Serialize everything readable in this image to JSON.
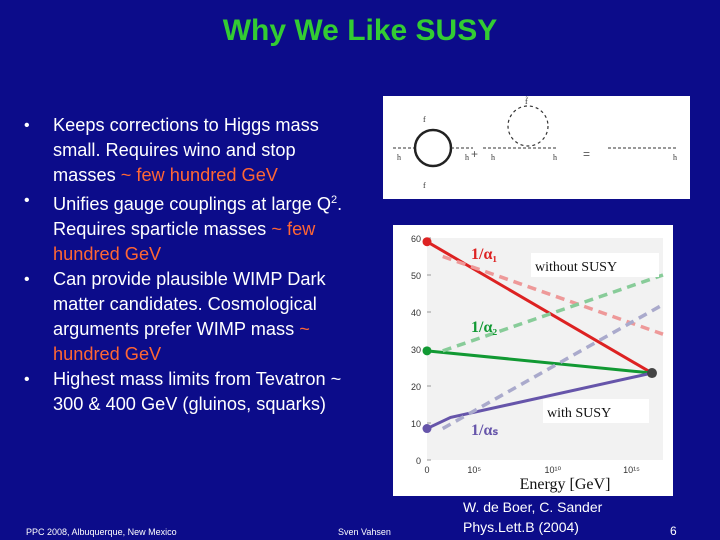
{
  "slide": {
    "title": "Why We Like SUSY",
    "bullets": [
      {
        "before": "Keeps corrections to Higgs mass small. Requires wino and stop masses ",
        "highlight": "~ few hundred GeV",
        "after": ""
      },
      {
        "before": "Unifies gauge couplings at large Q",
        "sup": "2",
        "after_sup": ". Requires sparticle masses ",
        "highlight": "~ few hundred GeV",
        "after": ""
      },
      {
        "before": "Can provide plausible WIMP Dark matter candidates. Cosmological arguments prefer WIMP mass ",
        "highlight": "~ hundred GeV",
        "after": ""
      },
      {
        "before": "Highest mass limits from Tevatron ~ 300 & 400 GeV (gluinos, squarks)",
        "highlight": "",
        "after": ""
      }
    ],
    "colors": {
      "background": "#0c0c8a",
      "title": "#33cc33",
      "highlight": "#ff6633"
    }
  },
  "loop_diagram": {
    "labels": {
      "f_top": "f",
      "f_bottom": "f",
      "h1": "h",
      "h2": "h",
      "h3": "h",
      "h4": "h",
      "h5": "h",
      "stop": "f̃",
      "plus": "+",
      "equals": "=",
      "zero": "0"
    }
  },
  "chart_data": {
    "type": "line",
    "xlabel": "Energy [GeV]",
    "x_ticks": [
      "0",
      "10⁵",
      "10¹⁰",
      "10¹⁵"
    ],
    "y_ticks": [
      "0",
      "10",
      "20",
      "30",
      "40",
      "50",
      "60"
    ],
    "ylim": [
      0,
      60
    ],
    "xlim": [
      2,
      17
    ],
    "x_scale": "log10",
    "series_labels": {
      "alpha1": "1/α₁",
      "alpha2": "1/α₂",
      "alphas": "1/αₛ"
    },
    "annotations": {
      "without": "without SUSY",
      "with": "with SUSY"
    },
    "series": [
      {
        "key": "alpha1_susy",
        "style": "solid",
        "color": "#dd2222",
        "x": [
          2,
          16.3
        ],
        "y": [
          59,
          23.5
        ]
      },
      {
        "key": "alpha2_susy",
        "style": "solid",
        "color": "#119933",
        "x": [
          2,
          16.3
        ],
        "y": [
          29.5,
          23.5
        ]
      },
      {
        "key": "alphas_susy",
        "style": "solid",
        "color": "#6655aa",
        "x": [
          2,
          3.5,
          16.3
        ],
        "y": [
          8.5,
          11.5,
          23.5
        ]
      },
      {
        "key": "alpha1_sm",
        "style": "dashed",
        "color": "#ee9999",
        "x": [
          3,
          17
        ],
        "y": [
          55,
          34
        ]
      },
      {
        "key": "alpha2_sm",
        "style": "dashed",
        "color": "#88cc99",
        "x": [
          3,
          17
        ],
        "y": [
          29.5,
          50
        ]
      },
      {
        "key": "alphas_sm",
        "style": "dashed",
        "color": "#aaaacc",
        "x": [
          3,
          17
        ],
        "y": [
          8.5,
          42
        ]
      }
    ],
    "convergence_point": {
      "x": 16.3,
      "y": 23.5
    }
  },
  "footer": {
    "conference": "PPC 2008, Albuquerque, New Mexico",
    "author": "Sven Vahsen",
    "citation_line1": "W. de Boer, C. Sander",
    "citation_line2": "Phys.Lett.B (2004)",
    "page": "6"
  }
}
